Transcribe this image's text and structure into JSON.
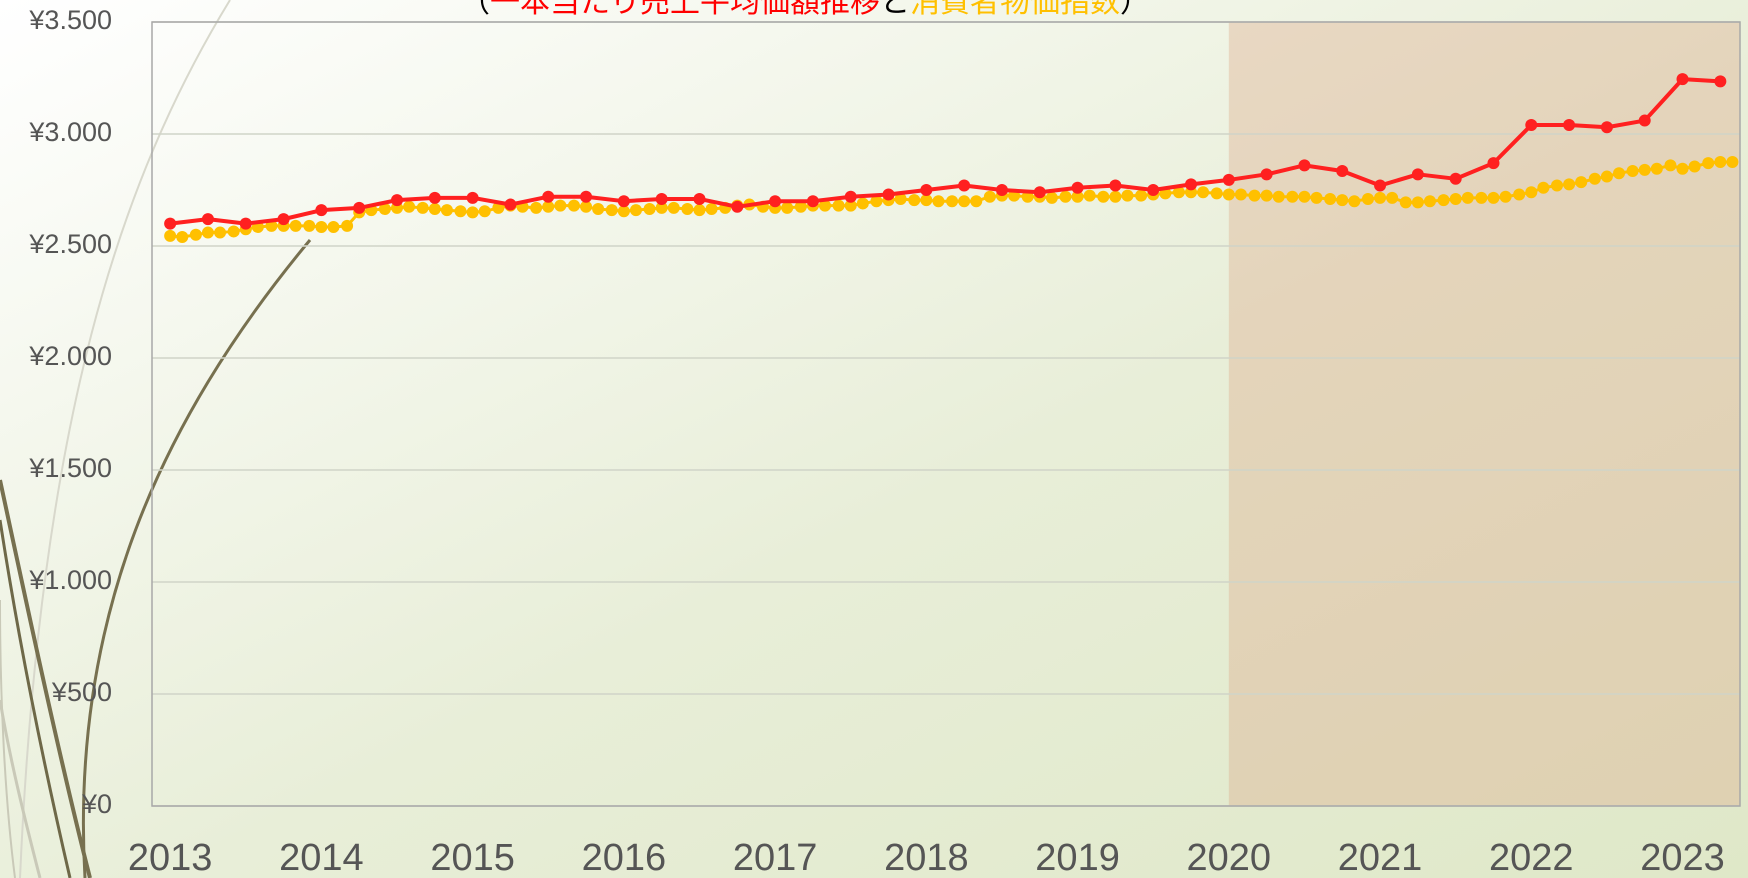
{
  "chart_data": {
    "type": "line",
    "title_parts": [
      {
        "text": "（",
        "color": "#000000"
      },
      {
        "text": "一本当たり売上平均価額推移",
        "color": "#ff0000"
      },
      {
        "text": "と",
        "color": "#000000"
      },
      {
        "text": "消費者物価指数",
        "color": "#ffc000"
      },
      {
        "text": "）",
        "color": "#000000"
      }
    ],
    "xlim": [
      2012.88,
      2023.38
    ],
    "xticks": [
      2013,
      2014,
      2015,
      2016,
      2017,
      2018,
      2019,
      2020,
      2021,
      2022,
      2023
    ],
    "ylim": [
      0,
      3500
    ],
    "yticks": [
      {
        "value": 0,
        "label": "¥0"
      },
      {
        "value": 500,
        "label": "¥500"
      },
      {
        "value": 1000,
        "label": "¥1.000"
      },
      {
        "value": 1500,
        "label": "¥1.500"
      },
      {
        "value": 2000,
        "label": "¥2.000"
      },
      {
        "value": 2500,
        "label": "¥2.500"
      },
      {
        "value": 3000,
        "label": "¥3.000"
      },
      {
        "value": 3500,
        "label": "¥3.500"
      }
    ],
    "grid": true,
    "highlight": {
      "from": 2020,
      "color": "rgba(222,170,140,0.38)"
    },
    "series": [
      {
        "color": "#ffc000",
        "line_width": 3,
        "x": [
          2013,
          2013.08,
          2013.17,
          2013.25,
          2013.33,
          2013.42,
          2013.5,
          2013.58,
          2013.67,
          2013.75,
          2013.83,
          2013.92,
          2014,
          2014.08,
          2014.17,
          2014.25,
          2014.33,
          2014.42,
          2014.5,
          2014.58,
          2014.67,
          2014.75,
          2014.83,
          2014.92,
          2015,
          2015.08,
          2015.17,
          2015.25,
          2015.33,
          2015.42,
          2015.5,
          2015.58,
          2015.67,
          2015.75,
          2015.83,
          2015.92,
          2016,
          2016.08,
          2016.17,
          2016.25,
          2016.33,
          2016.42,
          2016.5,
          2016.58,
          2016.67,
          2016.75,
          2016.83,
          2016.92,
          2017,
          2017.08,
          2017.17,
          2017.25,
          2017.33,
          2017.42,
          2017.5,
          2017.58,
          2017.67,
          2017.75,
          2017.83,
          2017.92,
          2018,
          2018.08,
          2018.17,
          2018.25,
          2018.33,
          2018.42,
          2018.5,
          2018.58,
          2018.67,
          2018.75,
          2018.83,
          2018.92,
          2019,
          2019.08,
          2019.17,
          2019.25,
          2019.33,
          2019.42,
          2019.5,
          2019.58,
          2019.67,
          2019.75,
          2019.83,
          2019.92,
          2020,
          2020.08,
          2020.17,
          2020.25,
          2020.33,
          2020.42,
          2020.5,
          2020.58,
          2020.67,
          2020.75,
          2020.83,
          2020.92,
          2021,
          2021.08,
          2021.17,
          2021.25,
          2021.33,
          2021.42,
          2021.5,
          2021.58,
          2021.67,
          2021.75,
          2021.83,
          2021.92,
          2022,
          2022.08,
          2022.17,
          2022.25,
          2022.33,
          2022.42,
          2022.5,
          2022.58,
          2022.67,
          2022.75,
          2022.83,
          2022.92,
          2023,
          2023.08,
          2023.17,
          2023.25,
          2023.33
        ],
        "values": [
          2545,
          2540,
          2550,
          2560,
          2560,
          2565,
          2575,
          2585,
          2590,
          2590,
          2590,
          2590,
          2585,
          2585,
          2590,
          2650,
          2660,
          2665,
          2670,
          2675,
          2670,
          2665,
          2660,
          2655,
          2650,
          2655,
          2670,
          2680,
          2675,
          2670,
          2675,
          2680,
          2680,
          2675,
          2665,
          2660,
          2655,
          2660,
          2665,
          2670,
          2670,
          2665,
          2660,
          2665,
          2670,
          2680,
          2685,
          2675,
          2670,
          2670,
          2675,
          2680,
          2680,
          2680,
          2680,
          2690,
          2700,
          2705,
          2710,
          2705,
          2705,
          2700,
          2700,
          2700,
          2700,
          2720,
          2725,
          2725,
          2720,
          2720,
          2715,
          2720,
          2720,
          2725,
          2720,
          2720,
          2725,
          2725,
          2730,
          2735,
          2740,
          2740,
          2740,
          2735,
          2730,
          2730,
          2725,
          2725,
          2720,
          2720,
          2720,
          2715,
          2710,
          2705,
          2700,
          2710,
          2715,
          2715,
          2695,
          2695,
          2700,
          2705,
          2710,
          2715,
          2715,
          2715,
          2720,
          2730,
          2740,
          2760,
          2770,
          2775,
          2785,
          2800,
          2810,
          2825,
          2835,
          2840,
          2845,
          2860,
          2845,
          2855,
          2870,
          2875,
          2875
        ]
      },
      {
        "color": "#ff2020",
        "line_width": 4,
        "x": [
          2013,
          2013.25,
          2013.5,
          2013.75,
          2014,
          2014.25,
          2014.5,
          2014.75,
          2015,
          2015.25,
          2015.5,
          2015.75,
          2016,
          2016.25,
          2016.5,
          2016.75,
          2017,
          2017.25,
          2017.5,
          2017.75,
          2018,
          2018.25,
          2018.5,
          2018.75,
          2019,
          2019.25,
          2019.5,
          2019.75,
          2020,
          2020.25,
          2020.5,
          2020.75,
          2021,
          2021.25,
          2021.5,
          2021.75,
          2022,
          2022.25,
          2022.5,
          2022.75,
          2023,
          2023.25
        ],
        "values": [
          2600,
          2620,
          2600,
          2620,
          2660,
          2670,
          2705,
          2715,
          2715,
          2685,
          2720,
          2720,
          2700,
          2710,
          2710,
          2675,
          2700,
          2700,
          2720,
          2730,
          2750,
          2770,
          2750,
          2740,
          2760,
          2770,
          2750,
          2775,
          2795,
          2820,
          2860,
          2835,
          2770,
          2820,
          2800,
          2870,
          3040,
          3040,
          3030,
          3060,
          3245,
          3235
        ]
      }
    ]
  }
}
